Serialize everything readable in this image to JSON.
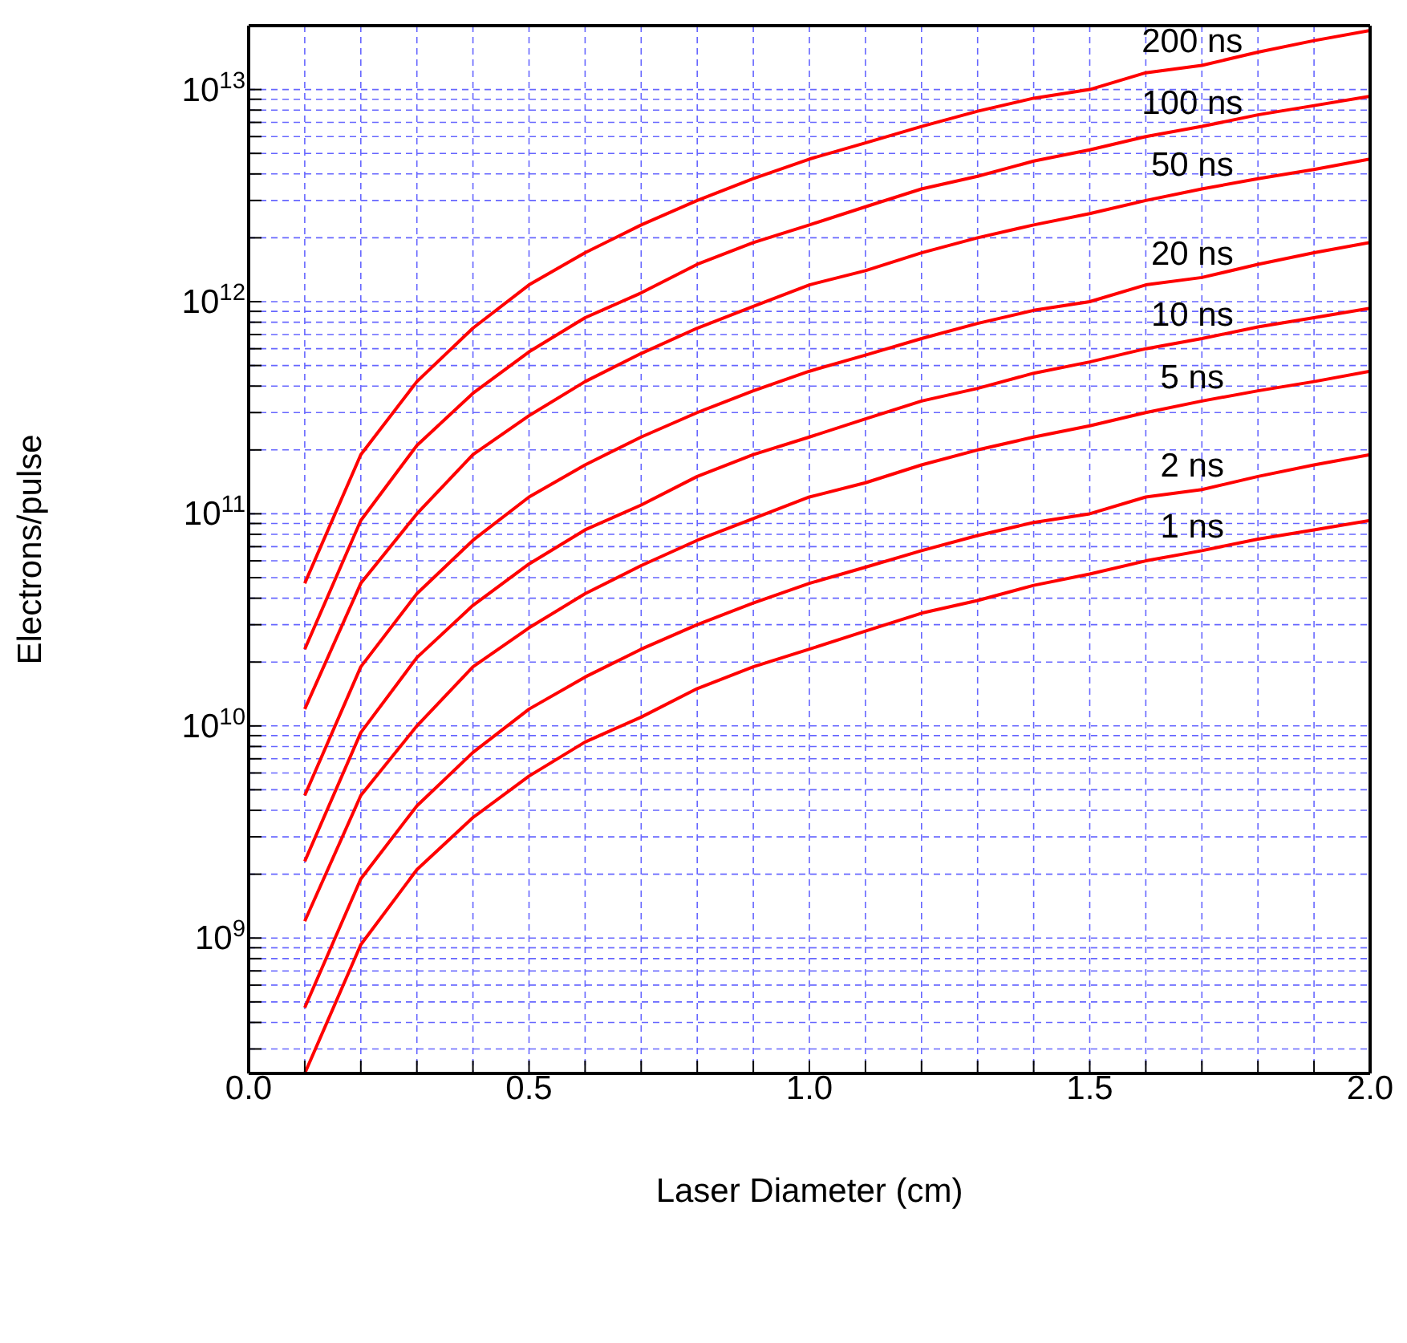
{
  "chart_data": {
    "type": "line",
    "xlabel": "Laser Diameter (cm)",
    "ylabel": "Electrons/pulse",
    "log": "y",
    "grid": true,
    "marker": "none",
    "line_style": "solid",
    "x": [
      0.1,
      0.2,
      0.3,
      0.4,
      0.5,
      0.6,
      0.7,
      0.8,
      0.9,
      1.0,
      1.1,
      1.2,
      1.3,
      1.4,
      1.5,
      1.6,
      1.7,
      1.8,
      1.9,
      2.0
    ],
    "xlim": [
      0,
      2
    ],
    "xticks": [
      {
        "value": 0,
        "label": "0.0"
      },
      {
        "value": 0.1,
        "label": null
      },
      {
        "value": 0.2,
        "label": null
      },
      {
        "value": 0.3,
        "label": null
      },
      {
        "value": 0.4,
        "label": null
      },
      {
        "value": 0.5,
        "label": "0.5"
      },
      {
        "value": 0.6,
        "label": null
      },
      {
        "value": 0.7,
        "label": null
      },
      {
        "value": 0.8,
        "label": null
      },
      {
        "value": 0.9,
        "label": null
      },
      {
        "value": 1,
        "label": "1.0"
      },
      {
        "value": 1.1,
        "label": null
      },
      {
        "value": 1.2,
        "label": null
      },
      {
        "value": 1.3,
        "label": null
      },
      {
        "value": 1.4,
        "label": null
      },
      {
        "value": 1.5,
        "label": "1.5"
      },
      {
        "value": 1.6,
        "label": null
      },
      {
        "value": 1.7,
        "label": null
      },
      {
        "value": 1.8,
        "label": null
      },
      {
        "value": 1.9,
        "label": null
      },
      {
        "value": 2,
        "label": "2.0"
      }
    ],
    "ylim": [
      230000000.0,
      20000000000000.0
    ],
    "yticks": [
      {
        "value": 300000000.0,
        "label": null
      },
      {
        "value": 400000000.0,
        "label": null
      },
      {
        "value": 500000000.0,
        "label": null
      },
      {
        "value": 600000000.0,
        "label": null
      },
      {
        "value": 700000000.0,
        "label": null
      },
      {
        "value": 800000000.0,
        "label": null
      },
      {
        "value": 900000000.0,
        "label": null
      },
      {
        "value": 1000000000.0,
        "label": "10$^{9}$"
      },
      {
        "value": 2000000000.0,
        "label": null
      },
      {
        "value": 3000000000.0,
        "label": null
      },
      {
        "value": 4000000000.0,
        "label": null
      },
      {
        "value": 5000000000.0,
        "label": null
      },
      {
        "value": 6000000000.0,
        "label": null
      },
      {
        "value": 7000000000.0,
        "label": null
      },
      {
        "value": 8000000000.0,
        "label": null
      },
      {
        "value": 9000000000.0,
        "label": null
      },
      {
        "value": 10000000000.0,
        "label": "10$^{10}$"
      },
      {
        "value": 20000000000.0,
        "label": null
      },
      {
        "value": 30000000000.0,
        "label": null
      },
      {
        "value": 40000000000.0,
        "label": null
      },
      {
        "value": 50000000000.0,
        "label": null
      },
      {
        "value": 60000000000.0,
        "label": null
      },
      {
        "value": 70000000000.0,
        "label": null
      },
      {
        "value": 80000000000.0,
        "label": null
      },
      {
        "value": 90000000000.0,
        "label": null
      },
      {
        "value": 100000000000.0,
        "label": "10$^{11}$"
      },
      {
        "value": 200000000000.0,
        "label": null
      },
      {
        "value": 300000000000.0,
        "label": null
      },
      {
        "value": 400000000000.0,
        "label": null
      },
      {
        "value": 500000000000.0,
        "label": null
      },
      {
        "value": 600000000000.0,
        "label": null
      },
      {
        "value": 700000000000.0,
        "label": null
      },
      {
        "value": 800000000000.0,
        "label": null
      },
      {
        "value": 900000000000.0,
        "label": null
      },
      {
        "value": 1000000000000.0,
        "label": "10$^{12}$"
      },
      {
        "value": 2000000000000.0,
        "label": null
      },
      {
        "value": 3000000000000.0,
        "label": null
      },
      {
        "value": 4000000000000.0,
        "label": null
      },
      {
        "value": 5000000000000.0,
        "label": null
      },
      {
        "value": 6000000000000.0,
        "label": null
      },
      {
        "value": 7000000000000.0,
        "label": null
      },
      {
        "value": 8000000000000.0,
        "label": null
      },
      {
        "value": 9000000000000.0,
        "label": null
      },
      {
        "value": 10000000000000.0,
        "label": "10$^{13}$"
      }
    ],
    "series": [
      {
        "name": "200 ns",
        "color": "#ff0000",
        "values": [
          47000000000.0,
          190000000000.0,
          420000000000.0,
          750000000000.0,
          1200000000000.0,
          1700000000000.0,
          2300000000000.0,
          3000000000000.0,
          3800000000000.0,
          4700000000000.0,
          5600000000000.0,
          6700000000000.0,
          7900000000000.0,
          9100000000000.0,
          10000000000000.0,
          12000000000000.0,
          13000000000000.0,
          15000000000000.0,
          17000000000000.0,
          19000000000000.0
        ]
      },
      {
        "name": "100 ns",
        "color": "#ff0000",
        "values": [
          23000000000.0,
          93000000000.0,
          210000000000.0,
          370000000000.0,
          580000000000.0,
          840000000000.0,
          1100000000000.0,
          1500000000000.0,
          1900000000000.0,
          2300000000000.0,
          2800000000000.0,
          3400000000000.0,
          3900000000000.0,
          4600000000000.0,
          5200000000000.0,
          6000000000000.0,
          6700000000000.0,
          7600000000000.0,
          8400000000000.0,
          9300000000000.0
        ]
      },
      {
        "name": "50 ns",
        "color": "#ff0000",
        "values": [
          12000000000.0,
          47000000000.0,
          100000000000.0,
          190000000000.0,
          290000000000.0,
          420000000000.0,
          570000000000.0,
          750000000000.0,
          950000000000.0,
          1200000000000.0,
          1400000000000.0,
          1700000000000.0,
          2000000000000.0,
          2300000000000.0,
          2600000000000.0,
          3000000000000.0,
          3400000000000.0,
          3800000000000.0,
          4200000000000.0,
          4700000000000.0
        ]
      },
      {
        "name": "20 ns",
        "color": "#ff0000",
        "values": [
          4700000000.0,
          19000000000.0,
          42000000000.0,
          75000000000.0,
          120000000000.0,
          170000000000.0,
          230000000000.0,
          300000000000.0,
          380000000000.0,
          470000000000.0,
          560000000000.0,
          670000000000.0,
          790000000000.0,
          910000000000.0,
          1000000000000.0,
          1200000000000.0,
          1300000000000.0,
          1500000000000.0,
          1700000000000.0,
          1900000000000.0
        ]
      },
      {
        "name": "10 ns",
        "color": "#ff0000",
        "values": [
          2300000000.0,
          9300000000.0,
          21000000000.0,
          37000000000.0,
          58000000000.0,
          84000000000.0,
          110000000000.0,
          150000000000.0,
          190000000000.0,
          230000000000.0,
          280000000000.0,
          340000000000.0,
          390000000000.0,
          460000000000.0,
          520000000000.0,
          600000000000.0,
          670000000000.0,
          760000000000.0,
          840000000000.0,
          930000000000.0
        ]
      },
      {
        "name": "5 ns",
        "color": "#ff0000",
        "values": [
          1200000000.0,
          4700000000.0,
          10000000000.0,
          19000000000.0,
          29000000000.0,
          42000000000.0,
          57000000000.0,
          75000000000.0,
          95000000000.0,
          120000000000.0,
          140000000000.0,
          170000000000.0,
          200000000000.0,
          230000000000.0,
          260000000000.0,
          300000000000.0,
          340000000000.0,
          380000000000.0,
          420000000000.0,
          470000000000.0
        ]
      },
      {
        "name": "2 ns",
        "color": "#ff0000",
        "values": [
          470000000.0,
          1900000000.0,
          4200000000.0,
          7500000000.0,
          12000000000.0,
          17000000000.0,
          23000000000.0,
          30000000000.0,
          38000000000.0,
          47000000000.0,
          56000000000.0,
          67000000000.0,
          79000000000.0,
          91000000000.0,
          100000000000.0,
          120000000000.0,
          130000000000.0,
          150000000000.0,
          170000000000.0,
          190000000000.0
        ]
      },
      {
        "name": "1 ns",
        "color": "#ff0000",
        "values": [
          230000000.0,
          930000000.0,
          2100000000.0,
          3700000000.0,
          5800000000.0,
          8400000000.0,
          11000000000.0,
          15000000000.0,
          19000000000.0,
          23000000000.0,
          28000000000.0,
          34000000000.0,
          39000000000.0,
          46000000000.0,
          52000000000.0,
          60000000000.0,
          67000000000.0,
          76000000000.0,
          84000000000.0,
          93000000000.0
        ]
      }
    ],
    "legend": false
  }
}
